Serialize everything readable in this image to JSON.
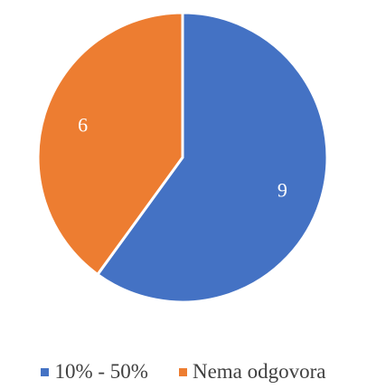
{
  "chart_data": {
    "type": "pie",
    "title": "",
    "slices": [
      {
        "label": "10% - 50%",
        "value": 9,
        "color": "#4472C4"
      },
      {
        "label": "Nema odgovora",
        "value": 6,
        "color": "#ED7D31"
      }
    ],
    "data_labels": [
      "9",
      "6"
    ],
    "start_angle_deg": 0,
    "direction": "clockwise",
    "legend_position": "bottom"
  }
}
